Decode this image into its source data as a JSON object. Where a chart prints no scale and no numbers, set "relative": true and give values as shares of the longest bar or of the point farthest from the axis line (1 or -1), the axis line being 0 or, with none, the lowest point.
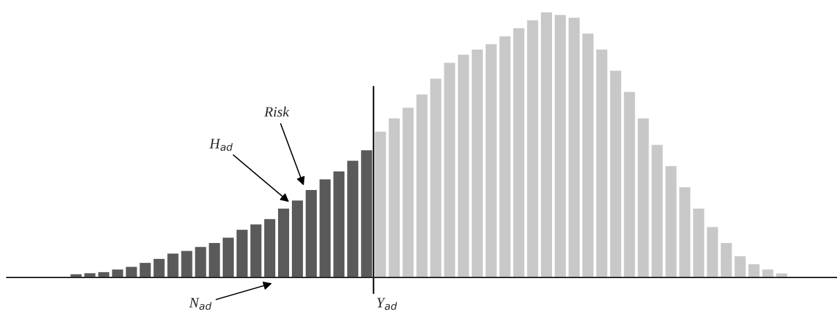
{
  "chart_data": {
    "type": "bar",
    "relative": true,
    "categories": [
      null,
      null,
      null,
      null,
      null,
      null,
      null,
      null,
      null,
      null,
      null,
      null,
      null,
      null,
      null,
      null,
      null,
      null,
      null,
      null,
      null,
      null,
      null,
      null,
      null,
      null,
      null,
      null,
      null,
      null,
      null,
      null,
      null,
      null,
      null,
      null,
      null,
      null,
      null,
      null,
      null,
      null,
      null,
      null,
      null,
      null,
      null,
      null,
      null,
      null,
      null,
      null
    ],
    "values": [
      0.012,
      0.016,
      0.02,
      0.03,
      0.04,
      0.055,
      0.07,
      0.09,
      0.1,
      0.115,
      0.13,
      0.15,
      0.18,
      0.2,
      0.22,
      0.26,
      0.29,
      0.33,
      0.37,
      0.4,
      0.44,
      0.48,
      0.55,
      0.6,
      0.64,
      0.69,
      0.75,
      0.81,
      0.84,
      0.86,
      0.88,
      0.91,
      0.94,
      0.97,
      1.0,
      0.99,
      0.98,
      0.92,
      0.86,
      0.78,
      0.7,
      0.6,
      0.5,
      0.42,
      0.34,
      0.26,
      0.19,
      0.13,
      0.08,
      0.05,
      0.03,
      0.015
    ],
    "colors": [
      "#5a5a5a",
      "#5a5a5a",
      "#5a5a5a",
      "#5a5a5a",
      "#5a5a5a",
      "#5a5a5a",
      "#5a5a5a",
      "#5a5a5a",
      "#5a5a5a",
      "#5a5a5a",
      "#5a5a5a",
      "#5a5a5a",
      "#5a5a5a",
      "#5a5a5a",
      "#5a5a5a",
      "#5a5a5a",
      "#5a5a5a",
      "#5a5a5a",
      "#5a5a5a",
      "#5a5a5a",
      "#5a5a5a",
      "#5a5a5a",
      "#c8c8c8",
      "#c8c8c8",
      "#c8c8c8",
      "#c8c8c8",
      "#c8c8c8",
      "#c8c8c8",
      "#c8c8c8",
      "#c8c8c8",
      "#c8c8c8",
      "#c8c8c8",
      "#c8c8c8",
      "#c8c8c8",
      "#c8c8c8",
      "#c8c8c8",
      "#c8c8c8",
      "#c8c8c8",
      "#c8c8c8",
      "#c8c8c8",
      "#c8c8c8",
      "#c8c8c8",
      "#c8c8c8",
      "#c8c8c8",
      "#c8c8c8",
      "#c8c8c8",
      "#c8c8c8",
      "#c8c8c8",
      "#c8c8c8",
      "#c8c8c8",
      "#c8c8c8",
      "#c8c8c8"
    ],
    "annotations": [
      "H$_{ad}$",
      "Risk",
      "N$_{ad}$",
      "Y$_{ad}$"
    ],
    "grid": false,
    "legend": false
  }
}
